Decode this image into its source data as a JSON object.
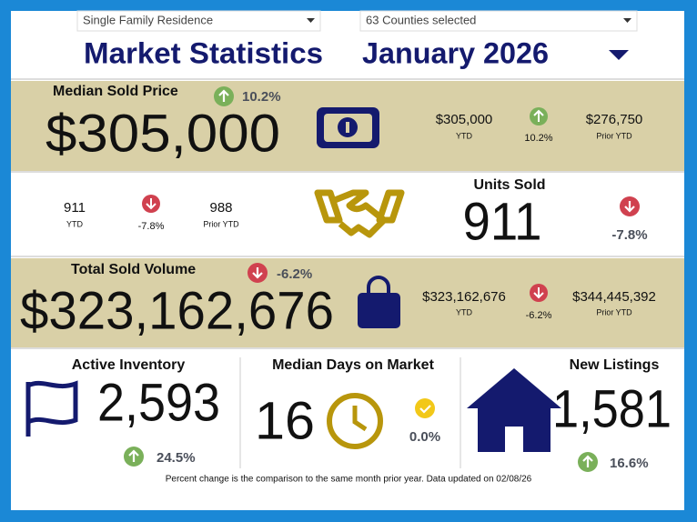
{
  "filters": {
    "property_type": "Single Family Residence",
    "counties": "63 Counties selected"
  },
  "header": {
    "title": "Market Statistics",
    "period": "January 2026"
  },
  "median_sold_price": {
    "label": "Median Sold Price",
    "value": "$305,000",
    "change": "10.2%",
    "ytd": "$305,000",
    "ytd_label": "YTD",
    "ytd_change": "10.2%",
    "prior_ytd": "$276,750",
    "prior_ytd_label": "Prior YTD"
  },
  "units_sold": {
    "label": "Units Sold",
    "value": "911",
    "change": "-7.8%",
    "ytd": "911",
    "ytd_label": "YTD",
    "ytd_change": "-7.8%",
    "prior_ytd": "988",
    "prior_ytd_label": "Prior YTD"
  },
  "total_sold_volume": {
    "label": "Total Sold Volume",
    "value": "$323,162,676",
    "change": "-6.2%",
    "ytd": "$323,162,676",
    "ytd_label": "YTD",
    "ytd_change": "-6.2%",
    "prior_ytd": "$344,445,392",
    "prior_ytd_label": "Prior YTD"
  },
  "active_inventory": {
    "label": "Active Inventory",
    "value": "2,593",
    "change": "24.5%"
  },
  "median_days_on_market": {
    "label": "Median Days on Market",
    "value": "16",
    "change": "0.0%"
  },
  "new_listings": {
    "label": "New Listings",
    "value": "1,581",
    "change": "16.6%"
  },
  "footnote": "Percent change is the comparison to the same month prior year. Data updated on 02/08/26"
}
